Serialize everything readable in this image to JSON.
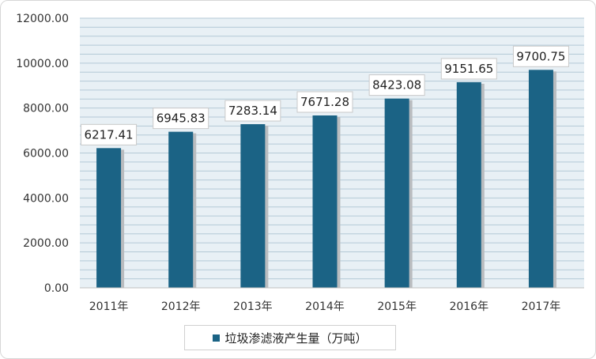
{
  "chart_data": {
    "type": "bar",
    "title": "",
    "xlabel": "",
    "ylabel": "",
    "categories": [
      "2011年",
      "2012年",
      "2013年",
      "2014年",
      "2015年",
      "2016年",
      "2017年"
    ],
    "series": [
      {
        "name": "垃圾渗滤液产生量（万吨）",
        "values": [
          6217.41,
          6945.83,
          7283.14,
          7671.28,
          8423.08,
          9151.65,
          9700.75
        ],
        "data_labels": [
          "6217.41",
          "6945.83",
          "7283.14",
          "7671.28",
          "8423.08",
          "9151.65",
          "9700.75"
        ]
      }
    ],
    "ylim": [
      0,
      12000
    ],
    "y_ticks": [
      "0.00",
      "2000.00",
      "4000.00",
      "6000.00",
      "8000.00",
      "10000.00",
      "12000.00"
    ],
    "grid": true,
    "legend_position": "bottom",
    "colors": {
      "bar": "#1b6385",
      "bar_shadow": "#b9bcbf",
      "grid": "#b3c9d6",
      "plot_background": "#e8f0f5"
    }
  }
}
